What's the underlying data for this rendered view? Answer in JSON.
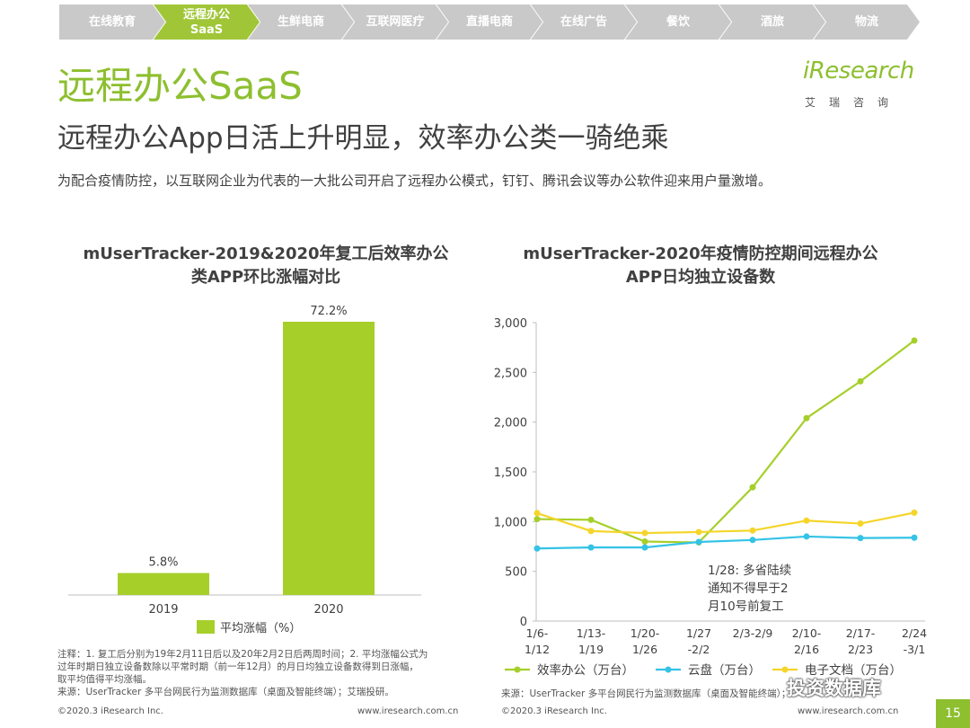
{
  "nav": {
    "items": [
      {
        "label": "在线教育",
        "active": false
      },
      {
        "label": "远程办公\nSaaS",
        "active": true
      },
      {
        "label": "生鲜电商",
        "active": false
      },
      {
        "label": "互联网医疗",
        "active": false
      },
      {
        "label": "直播电商",
        "active": false
      },
      {
        "label": "在线广告",
        "active": false
      },
      {
        "label": "餐饮",
        "active": false
      },
      {
        "label": "酒旅",
        "active": false
      },
      {
        "label": "物流",
        "active": false
      }
    ]
  },
  "page": {
    "title": "远程办公SaaS",
    "subtitle": "远程办公App日活上升明显，效率办公类一骑绝乘",
    "description": "为配合疫情防控，以互联网企业为代表的一大批公司开启了远程办公模式，钉钉、腾讯会议等办公软件迎来用户量激增。",
    "page_number": "15",
    "watermark": "投资数据库"
  },
  "logo": {
    "name": "iResearch",
    "sub": "艾瑞咨询"
  },
  "colors": {
    "accent": "#a0c638",
    "nav_inactive": "#c9c9c9",
    "series_green": "#a6cf2a",
    "series_blue": "#34c3e6",
    "series_yellow": "#f5d52a"
  },
  "chart_data": [
    {
      "type": "bar",
      "title": "mUserTracker-2019&2020年复工后效率办公类APP环比涨幅对比",
      "title_line1": "mUserTracker-2019&2020年复工后效率办公",
      "title_line2": "类APP环比涨幅对比",
      "categories": [
        "2019",
        "2020"
      ],
      "series": [
        {
          "name": "平均涨幅（%）",
          "values": [
            5.8,
            72.2
          ]
        }
      ],
      "data_labels": [
        "5.8%",
        "72.2%"
      ],
      "ylim": [
        0,
        72.2
      ],
      "legend": "bottom",
      "grid": false
    },
    {
      "type": "line",
      "title": "mUserTracker-2020年疫情防控期间远程办公APP日均独立设备数",
      "title_line1": "mUserTracker-2020年疫情防控期间远程办公",
      "title_line2": "APP日均独立设备数",
      "categories": [
        [
          "1/6-",
          "1/12"
        ],
        [
          "1/13-",
          "1/19"
        ],
        [
          "1/20-",
          "1/26"
        ],
        [
          "1/27",
          "-2/2"
        ],
        [
          "2/3-2/9",
          ""
        ],
        [
          "2/10-",
          "2/16"
        ],
        [
          "2/17-",
          "2/23"
        ],
        [
          "2/24",
          "-3/1"
        ]
      ],
      "series": [
        {
          "name": "效率办公（万台）",
          "color": "#a6cf2a",
          "values": [
            1025,
            1018,
            800,
            790,
            1345,
            2040,
            2410,
            2820
          ]
        },
        {
          "name": "云盘（万台）",
          "color": "#34c3e6",
          "values": [
            730,
            740,
            740,
            795,
            815,
            850,
            835,
            838
          ]
        },
        {
          "name": "电子文档（万台）",
          "color": "#f5d52a",
          "values": [
            1085,
            905,
            885,
            895,
            910,
            1010,
            980,
            1090
          ]
        }
      ],
      "yticks": [
        "3,000",
        "2,500",
        "2,000",
        "1,500",
        "1,000",
        "500",
        "0"
      ],
      "ylim": [
        0,
        3000
      ],
      "annotation": "1/28: 多省陆续\n通知不得早于2\n月10号前复工",
      "legend": "bottom",
      "grid": false
    }
  ],
  "notes": {
    "left_note_lines": [
      "注释：1. 复工后分别为19年2月11日后以及20年2月2日后两周时间；2. 平均涨幅公式为",
      "过年时期日独立设备数除以平常时期（前一年12月）的月日均独立设备数得到日涨幅，",
      "取平均值得平均涨幅。"
    ],
    "left_source": "来源：UserTracker 多平台网民行为监测数据库（桌面及智能终端）；艾瑞投研。",
    "right_source": "来源：UserTracker 多平台网民行为监测数据库（桌面及智能终端）；艾瑞投研。"
  },
  "footer": {
    "copyright": "©2020.3 iResearch Inc.",
    "url": "www.iresearch.com.cn"
  }
}
